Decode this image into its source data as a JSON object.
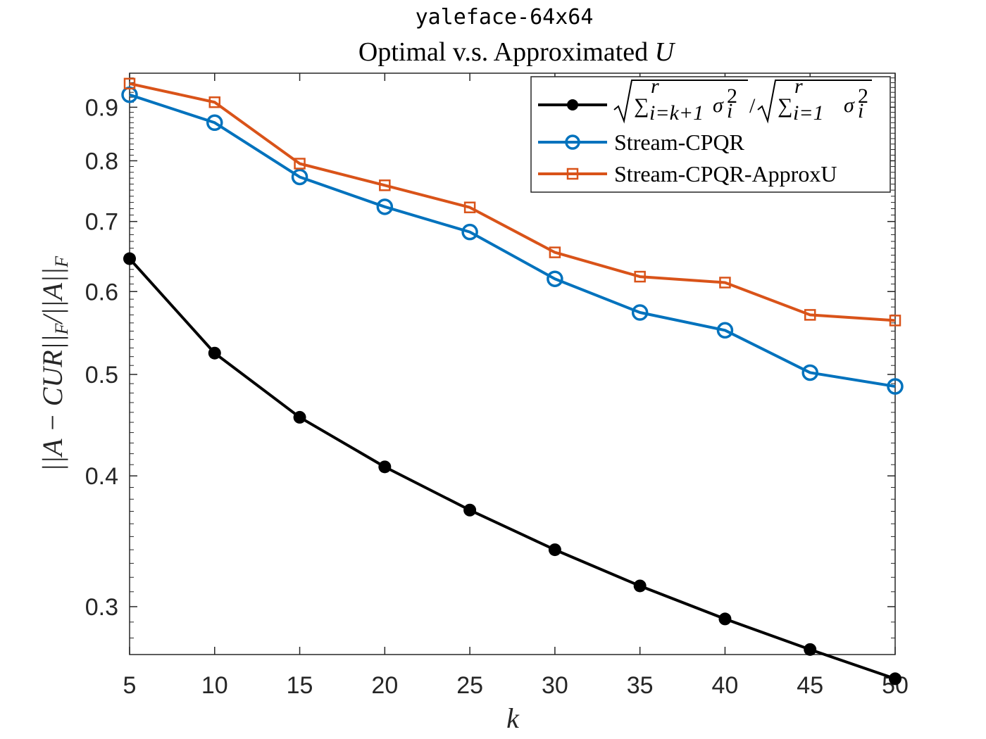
{
  "chart_data": {
    "type": "line",
    "title_line1": "yaleface-64x64",
    "title_line2_prefix": "Optimal v.s. Approximated ",
    "title_line2_var": "U",
    "xlabel": "k",
    "ylabel": "||A − CUR||F/||A||F",
    "x": [
      5,
      10,
      15,
      20,
      25,
      30,
      35,
      40,
      45,
      50
    ],
    "xlim": [
      5,
      50
    ],
    "ylim": [
      0.27,
      0.97
    ],
    "yscale": "log",
    "xticks": [
      "5",
      "10",
      "15",
      "20",
      "25",
      "30",
      "35",
      "40",
      "45",
      "50"
    ],
    "yticks": [
      {
        "value": 0.3,
        "label": "0.3"
      },
      {
        "value": 0.4,
        "label": "0.4"
      },
      {
        "value": 0.5,
        "label": "0.5"
      },
      {
        "value": 0.6,
        "label": "0.6"
      },
      {
        "value": 0.7,
        "label": "0.7"
      },
      {
        "value": 0.8,
        "label": "0.8"
      },
      {
        "value": 0.9,
        "label": "0.9"
      }
    ],
    "legend_position": "top-right",
    "series": [
      {
        "name": "√(Σ_{i=k+1}^r σ_i²)/√(Σ_{i=1}^r σ_i²)",
        "color": "#000000",
        "marker": "filled-circle",
        "values": [
          0.645,
          0.524,
          0.455,
          0.408,
          0.371,
          0.34,
          0.314,
          0.292,
          0.273,
          0.256
        ]
      },
      {
        "name": "Stream-CPQR",
        "color": "#0072BD",
        "marker": "open-circle",
        "values": [
          0.925,
          0.87,
          0.772,
          0.723,
          0.684,
          0.617,
          0.573,
          0.551,
          0.502,
          0.487
        ]
      },
      {
        "name": "Stream-CPQR-ApproxU",
        "color": "#D95319",
        "marker": "open-square",
        "values": [
          0.948,
          0.91,
          0.795,
          0.758,
          0.722,
          0.654,
          0.62,
          0.612,
          0.57,
          0.563
        ]
      }
    ]
  }
}
